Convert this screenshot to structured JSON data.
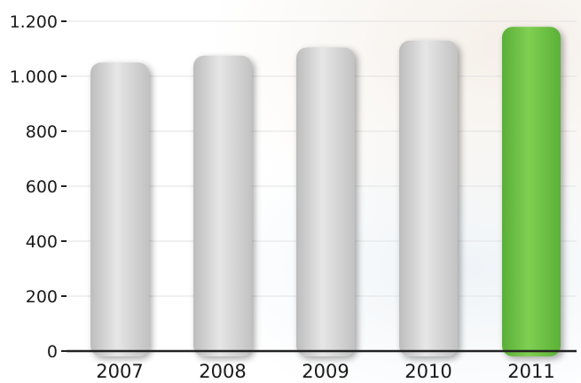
{
  "chart_data": {
    "type": "bar",
    "title": "",
    "xlabel": "",
    "ylabel": "",
    "categories": [
      "2007",
      "2008",
      "2009",
      "2010",
      "2011"
    ],
    "values": [
      1050,
      1075,
      1105,
      1130,
      1180
    ],
    "ylim": [
      0,
      1200
    ],
    "yticks": [
      0,
      200,
      400,
      600,
      800,
      1000,
      1200
    ],
    "ytick_labels": [
      "0",
      "200",
      "400",
      "600",
      "800",
      "1.000",
      "1.200"
    ],
    "grid": true,
    "legend": "none",
    "highlight_index": 4,
    "colors": {
      "bar_default": "#d4d4d4",
      "bar_highlight": "#6cbf45",
      "axis": "#222222",
      "grid": "#e2e2e2"
    }
  }
}
